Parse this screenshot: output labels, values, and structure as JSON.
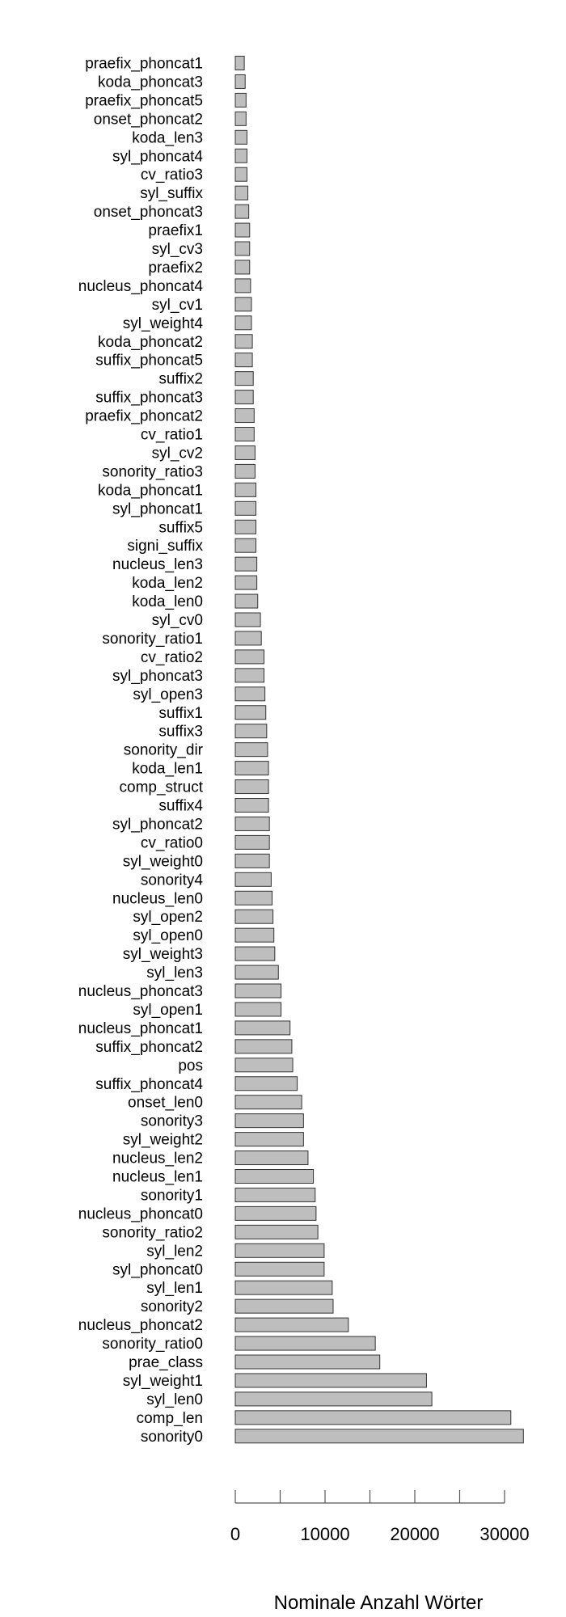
{
  "chart_data": {
    "type": "bar",
    "orientation": "horizontal",
    "xlabel": "Nominale Anzahl Wörter",
    "ylabel": "",
    "title": "",
    "xlim": [
      0,
      30000
    ],
    "xticks": [
      0,
      5000,
      10000,
      15000,
      20000,
      25000,
      30000
    ],
    "xtick_labels": [
      "0",
      "",
      "10000",
      "",
      "20000",
      "",
      "30000"
    ],
    "grid": false,
    "bar_color": "#bebebe",
    "categories": [
      "praefix_phoncat1",
      "koda_phoncat3",
      "praefix_phoncat5",
      "onset_phoncat2",
      "koda_len3",
      "syl_phoncat4",
      "cv_ratio3",
      "syl_suffix",
      "onset_phoncat3",
      "praefix1",
      "syl_cv3",
      "praefix2",
      "nucleus_phoncat4",
      "syl_cv1",
      "syl_weight4",
      "koda_phoncat2",
      "suffix_phoncat5",
      "suffix2",
      "suffix_phoncat3",
      "praefix_phoncat2",
      "cv_ratio1",
      "syl_cv2",
      "sonority_ratio3",
      "koda_phoncat1",
      "syl_phoncat1",
      "suffix5",
      "signi_suffix",
      "nucleus_len3",
      "koda_len2",
      "koda_len0",
      "syl_cv0",
      "sonority_ratio1",
      "cv_ratio2",
      "syl_phoncat3",
      "syl_open3",
      "suffix1",
      "suffix3",
      "sonority_dir",
      "koda_len1",
      "comp_struct",
      "suffix4",
      "syl_phoncat2",
      "cv_ratio0",
      "syl_weight0",
      "sonority4",
      "nucleus_len0",
      "syl_open2",
      "syl_open0",
      "syl_weight3",
      "syl_len3",
      "nucleus_phoncat3",
      "syl_open1",
      "nucleus_phoncat1",
      "suffix_phoncat2",
      "pos",
      "suffix_phoncat4",
      "onset_len0",
      "sonority3",
      "syl_weight2",
      "nucleus_len2",
      "nucleus_len1",
      "sonority1",
      "nucleus_phoncat0",
      "sonority_ratio2",
      "syl_len2",
      "syl_phoncat0",
      "syl_len1",
      "sonority2",
      "nucleus_phoncat2",
      "sonority_ratio0",
      "prae_class",
      "syl_weight1",
      "syl_len0",
      "comp_len",
      "sonority0"
    ],
    "values": [
      1000,
      1100,
      1200,
      1200,
      1300,
      1300,
      1300,
      1400,
      1500,
      1600,
      1600,
      1600,
      1700,
      1800,
      1800,
      1900,
      1900,
      2000,
      2000,
      2100,
      2100,
      2200,
      2200,
      2300,
      2300,
      2300,
      2300,
      2400,
      2400,
      2500,
      2800,
      2900,
      3200,
      3200,
      3300,
      3400,
      3500,
      3600,
      3700,
      3700,
      3700,
      3800,
      3800,
      3800,
      4000,
      4100,
      4200,
      4300,
      4400,
      4800,
      5100,
      5100,
      6100,
      6300,
      6400,
      6900,
      7400,
      7600,
      7600,
      8100,
      8700,
      8900,
      9000,
      9200,
      9900,
      9900,
      10800,
      10900,
      12600,
      15600,
      16100,
      21300,
      21900,
      30700,
      32100
    ]
  }
}
